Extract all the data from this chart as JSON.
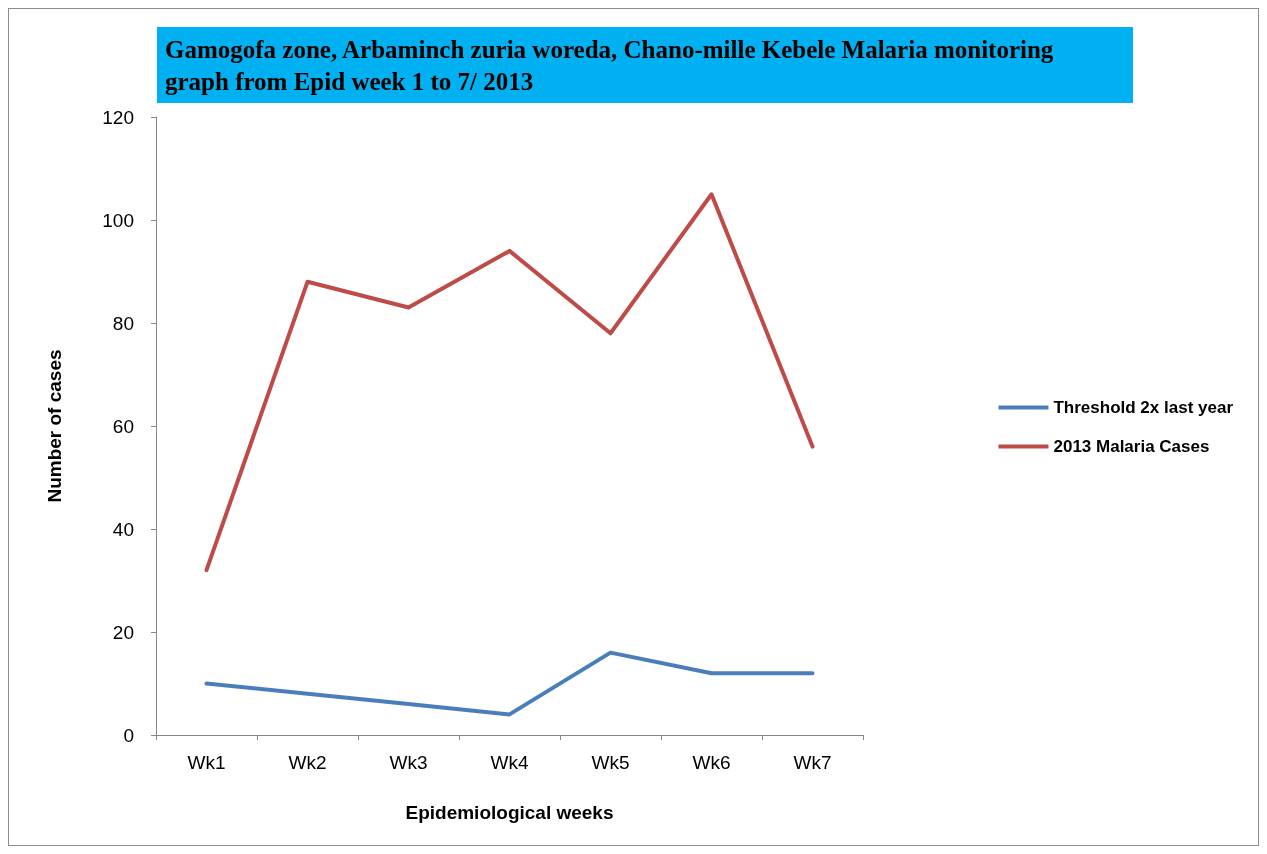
{
  "chart_data": {
    "type": "line",
    "title": "Gamogofa zone, Arbaminch zuria woreda, Chano-mille Kebele Malaria monitoring graph from Epid week 1 to 7/ 2013",
    "xlabel": "Epidemiological weeks",
    "ylabel": "Number of cases",
    "categories": [
      "Wk1",
      "Wk2",
      "Wk3",
      "Wk4",
      "Wk5",
      "Wk6",
      "Wk7"
    ],
    "series": [
      {
        "name": "Threshold 2x last year",
        "color": "#4a7ebb",
        "values": [
          10,
          8,
          6,
          4,
          16,
          12,
          12
        ]
      },
      {
        "name": "2013 Malaria Cases",
        "color": "#be4b48",
        "values": [
          32,
          88,
          83,
          94,
          78,
          105,
          56
        ]
      }
    ],
    "ylim": [
      0,
      120
    ],
    "yticks": [
      0,
      20,
      40,
      60,
      80,
      100,
      120
    ],
    "grid": false,
    "legend": "right",
    "marker": "none",
    "line_style": "solid"
  }
}
